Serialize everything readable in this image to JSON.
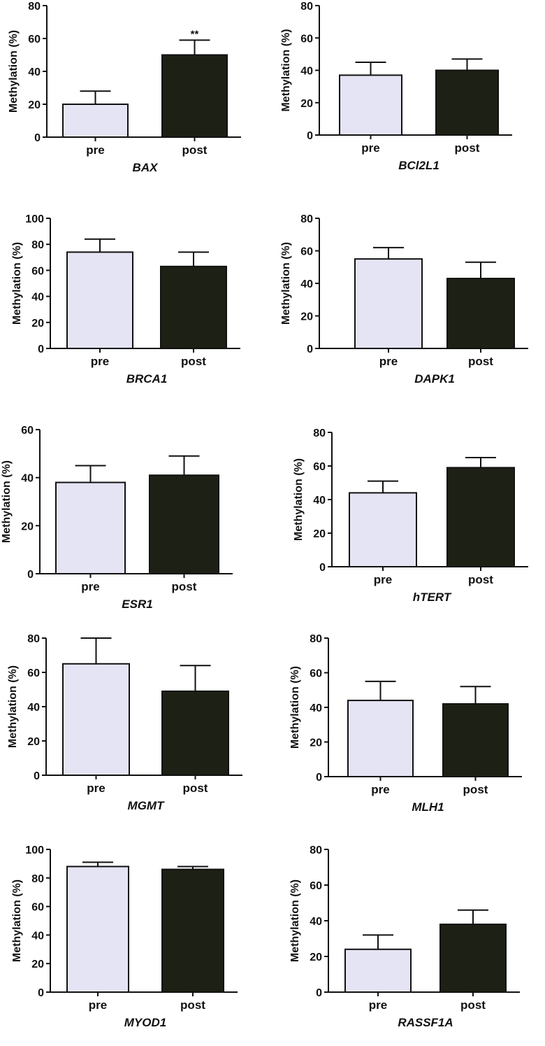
{
  "colors": {
    "pre": "#e4e4f4",
    "post": "#1d2115",
    "axis": "#111111"
  },
  "chart_data": [
    {
      "type": "bar",
      "gene": "BAX",
      "ylabel": "Methylation (%)",
      "ylim": [
        0,
        80
      ],
      "yticks": [
        0,
        20,
        40,
        60,
        80
      ],
      "categories": [
        "pre",
        "post"
      ],
      "values": [
        20,
        50
      ],
      "errors": [
        8,
        9
      ],
      "annotation": "**"
    },
    {
      "type": "bar",
      "gene": "BCl2L1",
      "ylabel": "Methylation (%)",
      "ylim": [
        0,
        80
      ],
      "yticks": [
        0,
        20,
        40,
        60,
        80
      ],
      "categories": [
        "pre",
        "post"
      ],
      "values": [
        37,
        40
      ],
      "errors": [
        8,
        7
      ],
      "annotation": ""
    },
    {
      "type": "bar",
      "gene": "BRCA1",
      "ylabel": "Methylation (%)",
      "ylim": [
        0,
        100
      ],
      "yticks": [
        0,
        20,
        40,
        60,
        80,
        100
      ],
      "categories": [
        "pre",
        "post"
      ],
      "values": [
        74,
        63
      ],
      "errors": [
        10,
        11
      ],
      "annotation": ""
    },
    {
      "type": "bar",
      "gene": "DAPK1",
      "ylabel": "Methylation (%)",
      "ylim": [
        0,
        80
      ],
      "yticks": [
        0,
        20,
        40,
        60,
        80
      ],
      "categories": [
        "pre",
        "post"
      ],
      "values": [
        55,
        43
      ],
      "errors": [
        7,
        10
      ],
      "annotation": ""
    },
    {
      "type": "bar",
      "gene": "ESR1",
      "ylabel": "Methylation (%)",
      "ylim": [
        0,
        60
      ],
      "yticks": [
        0,
        20,
        40,
        60
      ],
      "categories": [
        "pre",
        "post"
      ],
      "values": [
        38,
        41
      ],
      "errors": [
        7,
        8
      ],
      "annotation": ""
    },
    {
      "type": "bar",
      "gene": "hTERT",
      "ylabel": "Methylation (%)",
      "ylim": [
        0,
        80
      ],
      "yticks": [
        0,
        20,
        40,
        60,
        80
      ],
      "categories": [
        "pre",
        "post"
      ],
      "values": [
        44,
        59
      ],
      "errors": [
        7,
        6
      ],
      "annotation": ""
    },
    {
      "type": "bar",
      "gene": "MGMT",
      "ylabel": "Methylation (%)",
      "ylim": [
        0,
        80
      ],
      "yticks": [
        0,
        20,
        40,
        60,
        80
      ],
      "categories": [
        "pre",
        "post"
      ],
      "values": [
        65,
        49
      ],
      "errors": [
        15,
        15
      ],
      "annotation": ""
    },
    {
      "type": "bar",
      "gene": "MLH1",
      "ylabel": "Methylation (%)",
      "ylim": [
        0,
        80
      ],
      "yticks": [
        0,
        20,
        40,
        60,
        80
      ],
      "categories": [
        "pre",
        "post"
      ],
      "values": [
        44,
        42
      ],
      "errors": [
        11,
        10
      ],
      "annotation": ""
    },
    {
      "type": "bar",
      "gene": "MYOD1",
      "ylabel": "Methylation (%)",
      "ylim": [
        0,
        100
      ],
      "yticks": [
        0,
        20,
        40,
        60,
        80,
        100
      ],
      "categories": [
        "pre",
        "post"
      ],
      "values": [
        88,
        86
      ],
      "errors": [
        3,
        2
      ],
      "annotation": ""
    },
    {
      "type": "bar",
      "gene": "RASSF1A",
      "ylabel": "Methylation (%)",
      "ylim": [
        0,
        80
      ],
      "yticks": [
        0,
        20,
        40,
        60,
        80
      ],
      "categories": [
        "pre",
        "post"
      ],
      "values": [
        24,
        38
      ],
      "errors": [
        8,
        8
      ],
      "annotation": ""
    }
  ]
}
